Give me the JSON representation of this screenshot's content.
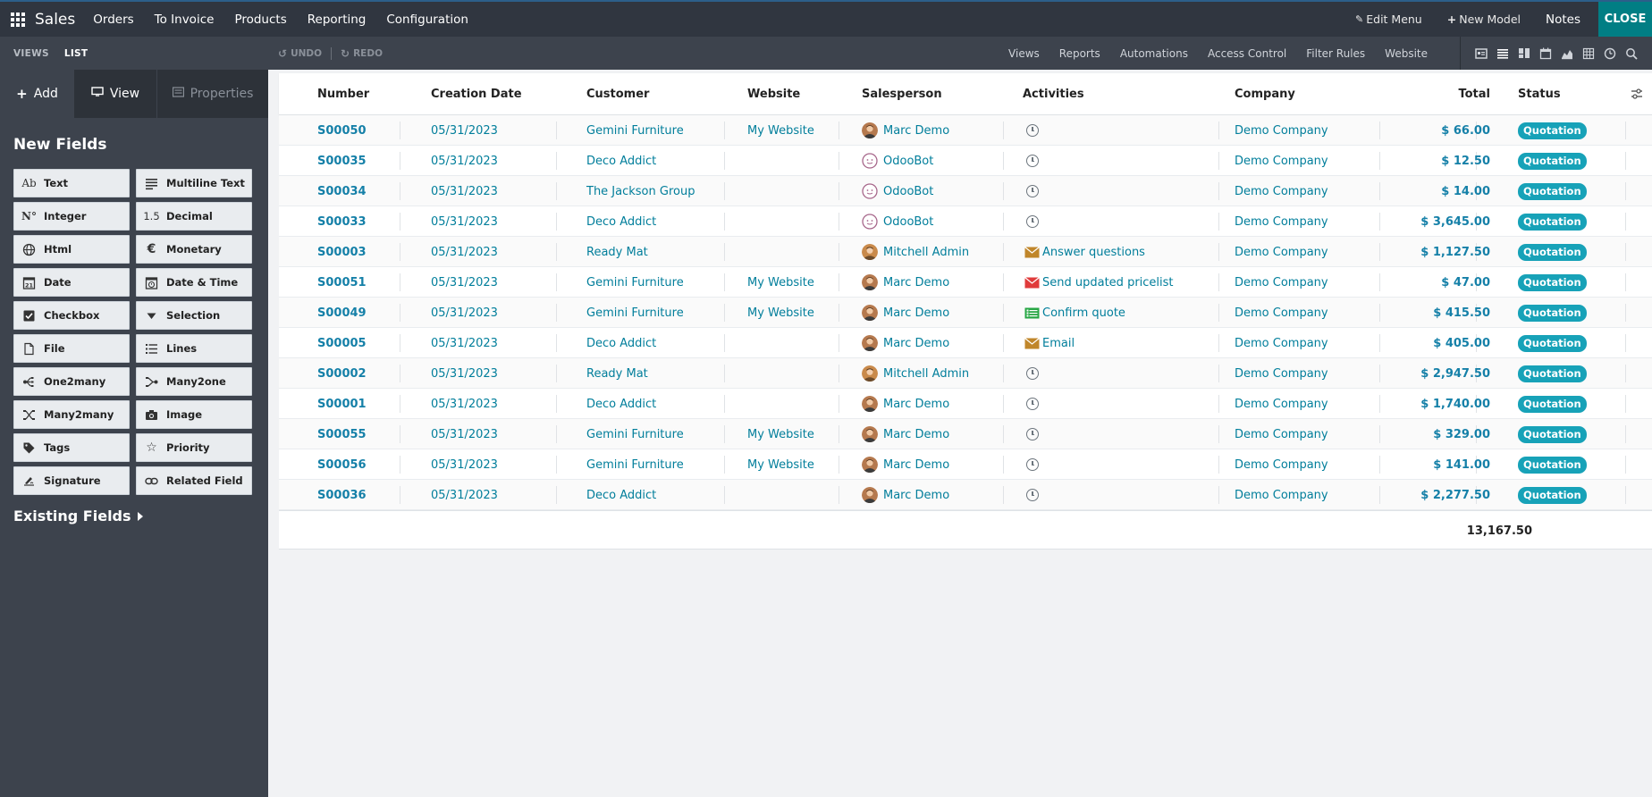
{
  "topbar": {
    "app_name": "Sales",
    "nav": [
      "Orders",
      "To Invoice",
      "Products",
      "Reporting",
      "Configuration"
    ],
    "edit_menu": "Edit Menu",
    "new_model": "New Model",
    "notes": "Notes",
    "close": "CLOSE"
  },
  "subbar": {
    "views": "VIEWS",
    "list": "LIST",
    "undo": "UNDO",
    "redo": "REDO",
    "links": [
      "Views",
      "Reports",
      "Automations",
      "Access Control",
      "Filter Rules",
      "Website"
    ],
    "view_icons": [
      "form-view-icon",
      "list-view-icon",
      "kanban-view-icon",
      "calendar-view-icon",
      "graph-view-icon",
      "pivot-view-icon",
      "activity-view-icon",
      "search-icon"
    ]
  },
  "sidebar": {
    "tabs": {
      "add": "Add",
      "view": "View",
      "properties": "Properties"
    },
    "new_fields_title": "New Fields",
    "fields": [
      {
        "label": "Text",
        "icon": "Ab"
      },
      {
        "label": "Multiline Text",
        "icon": "multiline-icon"
      },
      {
        "label": "Integer",
        "icon": "N°"
      },
      {
        "label": "Decimal",
        "icon": "1.5"
      },
      {
        "label": "Html",
        "icon": "globe-icon"
      },
      {
        "label": "Monetary",
        "icon": "€"
      },
      {
        "label": "Date",
        "icon": "calendar-21-icon"
      },
      {
        "label": "Date & Time",
        "icon": "calendar-clock-icon"
      },
      {
        "label": "Checkbox",
        "icon": "checkbox-icon"
      },
      {
        "label": "Selection",
        "icon": "caret-down-icon"
      },
      {
        "label": "File",
        "icon": "file-icon"
      },
      {
        "label": "Lines",
        "icon": "lines-icon"
      },
      {
        "label": "One2many",
        "icon": "one2many-icon"
      },
      {
        "label": "Many2one",
        "icon": "many2one-icon"
      },
      {
        "label": "Many2many",
        "icon": "many2many-icon"
      },
      {
        "label": "Image",
        "icon": "camera-icon"
      },
      {
        "label": "Tags",
        "icon": "tag-icon"
      },
      {
        "label": "Priority",
        "icon": "star-icon"
      },
      {
        "label": "Signature",
        "icon": "signature-icon"
      },
      {
        "label": "Related Field",
        "icon": "link-icon"
      }
    ],
    "existing_fields": "Existing Fields"
  },
  "table": {
    "columns": [
      "Number",
      "Creation Date",
      "Customer",
      "Website",
      "Salesperson",
      "Activities",
      "Company",
      "Total",
      "Status"
    ],
    "rows": [
      {
        "number": "S00050",
        "date": "05/31/2023",
        "customer": "Gemini Furniture",
        "website": "My Website",
        "salesperson": "Marc Demo",
        "avatar": "marc",
        "activity": "",
        "activity_icon": "clock",
        "company": "Demo Company",
        "total": "$ 66.00",
        "status": "Quotation"
      },
      {
        "number": "S00035",
        "date": "05/31/2023",
        "customer": "Deco Addict",
        "website": "",
        "salesperson": "OdooBot",
        "avatar": "odoobot",
        "activity": "",
        "activity_icon": "clock",
        "company": "Demo Company",
        "total": "$ 12.50",
        "status": "Quotation"
      },
      {
        "number": "S00034",
        "date": "05/31/2023",
        "customer": "The Jackson Group",
        "website": "",
        "salesperson": "OdooBot",
        "avatar": "odoobot",
        "activity": "",
        "activity_icon": "clock",
        "company": "Demo Company",
        "total": "$ 14.00",
        "status": "Quotation"
      },
      {
        "number": "S00033",
        "date": "05/31/2023",
        "customer": "Deco Addict",
        "website": "",
        "salesperson": "OdooBot",
        "avatar": "odoobot",
        "activity": "",
        "activity_icon": "clock",
        "company": "Demo Company",
        "total": "$ 3,645.00",
        "status": "Quotation"
      },
      {
        "number": "S00003",
        "date": "05/31/2023",
        "customer": "Ready Mat",
        "website": "",
        "salesperson": "Mitchell Admin",
        "avatar": "mitchell",
        "activity": "Answer questions",
        "activity_icon": "envelope-orange",
        "company": "Demo Company",
        "total": "$ 1,127.50",
        "status": "Quotation"
      },
      {
        "number": "S00051",
        "date": "05/31/2023",
        "customer": "Gemini Furniture",
        "website": "My Website",
        "salesperson": "Marc Demo",
        "avatar": "marc",
        "activity": "Send updated pricelist",
        "activity_icon": "envelope-red",
        "company": "Demo Company",
        "total": "$ 47.00",
        "status": "Quotation"
      },
      {
        "number": "S00049",
        "date": "05/31/2023",
        "customer": "Gemini Furniture",
        "website": "My Website",
        "salesperson": "Marc Demo",
        "avatar": "marc",
        "activity": "Confirm quote",
        "activity_icon": "list-green",
        "company": "Demo Company",
        "total": "$ 415.50",
        "status": "Quotation"
      },
      {
        "number": "S00005",
        "date": "05/31/2023",
        "customer": "Deco Addict",
        "website": "",
        "salesperson": "Marc Demo",
        "avatar": "marc",
        "activity": "Email",
        "activity_icon": "envelope-orange",
        "company": "Demo Company",
        "total": "$ 405.00",
        "status": "Quotation"
      },
      {
        "number": "S00002",
        "date": "05/31/2023",
        "customer": "Ready Mat",
        "website": "",
        "salesperson": "Mitchell Admin",
        "avatar": "mitchell",
        "activity": "",
        "activity_icon": "clock",
        "company": "Demo Company",
        "total": "$ 2,947.50",
        "status": "Quotation"
      },
      {
        "number": "S00001",
        "date": "05/31/2023",
        "customer": "Deco Addict",
        "website": "",
        "salesperson": "Marc Demo",
        "avatar": "marc",
        "activity": "",
        "activity_icon": "clock",
        "company": "Demo Company",
        "total": "$ 1,740.00",
        "status": "Quotation"
      },
      {
        "number": "S00055",
        "date": "05/31/2023",
        "customer": "Gemini Furniture",
        "website": "My Website",
        "salesperson": "Marc Demo",
        "avatar": "marc",
        "activity": "",
        "activity_icon": "clock",
        "company": "Demo Company",
        "total": "$ 329.00",
        "status": "Quotation"
      },
      {
        "number": "S00056",
        "date": "05/31/2023",
        "customer": "Gemini Furniture",
        "website": "My Website",
        "salesperson": "Marc Demo",
        "avatar": "marc",
        "activity": "",
        "activity_icon": "clock",
        "company": "Demo Company",
        "total": "$ 141.00",
        "status": "Quotation"
      },
      {
        "number": "S00036",
        "date": "05/31/2023",
        "customer": "Deco Addict",
        "website": "",
        "salesperson": "Marc Demo",
        "avatar": "marc",
        "activity": "",
        "activity_icon": "clock",
        "company": "Demo Company",
        "total": "$ 2,277.50",
        "status": "Quotation"
      }
    ],
    "footer_total": "13,167.50"
  },
  "colors": {
    "topbar": "#303640",
    "subbar": "#3d434d",
    "accent": "#017e84",
    "link": "#017e9b",
    "badge": "#17a2b8"
  }
}
